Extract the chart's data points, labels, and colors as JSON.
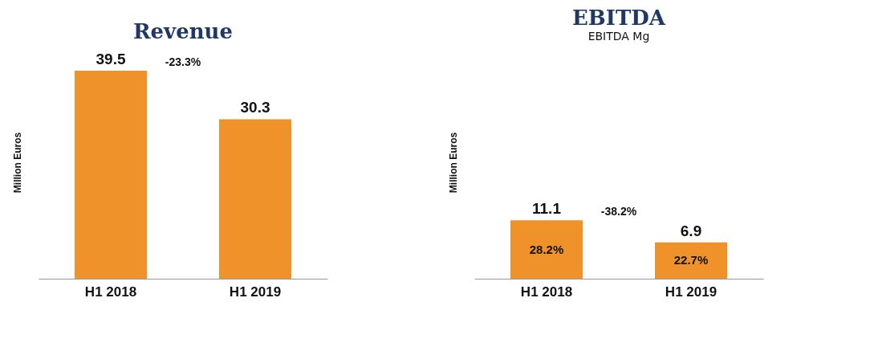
{
  "chart_data": [
    {
      "type": "bar",
      "title": "Revenue",
      "ylabel": "Million Euros",
      "categories": [
        "H1 2018",
        "H1 2019"
      ],
      "values": [
        39.5,
        30.3
      ],
      "color": "#f0922a",
      "data_labels": true,
      "annotations": [
        "-23.3%"
      ]
    },
    {
      "type": "bar",
      "title": "EBITDA",
      "subtitle": "EBITDA Mg",
      "ylabel": "Million Euros",
      "categories": [
        "H1 2018",
        "H1 2019"
      ],
      "values": [
        11.1,
        6.9
      ],
      "color": "#f0922a",
      "data_labels": true,
      "annotations": [
        "-38.2%",
        "28.2%",
        "22.7%"
      ]
    }
  ]
}
